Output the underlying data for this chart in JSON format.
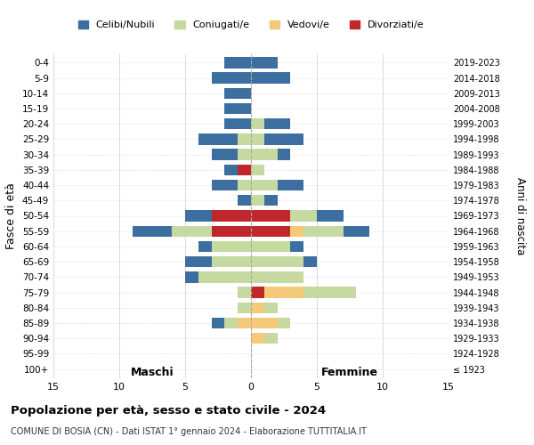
{
  "age_groups": [
    "0-4",
    "5-9",
    "10-14",
    "15-19",
    "20-24",
    "25-29",
    "30-34",
    "35-39",
    "40-44",
    "45-49",
    "50-54",
    "55-59",
    "60-64",
    "65-69",
    "70-74",
    "75-79",
    "80-84",
    "85-89",
    "90-94",
    "95-99",
    "100+"
  ],
  "birth_years": [
    "2019-2023",
    "2014-2018",
    "2009-2013",
    "2004-2008",
    "1999-2003",
    "1994-1998",
    "1989-1993",
    "1984-1988",
    "1979-1983",
    "1974-1978",
    "1969-1973",
    "1964-1968",
    "1959-1963",
    "1954-1958",
    "1949-1953",
    "1944-1948",
    "1939-1943",
    "1934-1938",
    "1929-1933",
    "1924-1928",
    "≤ 1923"
  ],
  "colors": {
    "celibe": "#3C6FA0",
    "coniugato": "#C5D9A0",
    "vedovo": "#F5C97A",
    "divorziato": "#C0272D"
  },
  "maschi": {
    "celibe": [
      2,
      3,
      2,
      2,
      2,
      3,
      2,
      1,
      2,
      1,
      2,
      3,
      1,
      2,
      1,
      0,
      0,
      1,
      0,
      0,
      0
    ],
    "coniugato": [
      0,
      0,
      0,
      0,
      0,
      1,
      1,
      0,
      1,
      0,
      0,
      3,
      3,
      3,
      4,
      1,
      1,
      1,
      0,
      0,
      0
    ],
    "vedovo": [
      0,
      0,
      0,
      0,
      0,
      0,
      0,
      0,
      0,
      0,
      0,
      0,
      0,
      0,
      0,
      0,
      0,
      1,
      0,
      0,
      0
    ],
    "divorziato": [
      0,
      0,
      0,
      0,
      0,
      0,
      0,
      1,
      0,
      0,
      3,
      3,
      0,
      0,
      0,
      0,
      0,
      0,
      0,
      0,
      0
    ]
  },
  "femmine": {
    "nubile": [
      2,
      3,
      0,
      0,
      2,
      3,
      1,
      0,
      2,
      1,
      2,
      2,
      1,
      1,
      0,
      0,
      0,
      0,
      0,
      0,
      0
    ],
    "coniugata": [
      0,
      0,
      0,
      0,
      1,
      1,
      2,
      1,
      2,
      1,
      2,
      3,
      3,
      4,
      4,
      4,
      1,
      1,
      1,
      0,
      0
    ],
    "vedova": [
      0,
      0,
      0,
      0,
      0,
      0,
      0,
      0,
      0,
      0,
      0,
      1,
      0,
      0,
      0,
      3,
      1,
      2,
      1,
      0,
      0
    ],
    "divorziata": [
      0,
      0,
      0,
      0,
      0,
      0,
      0,
      0,
      0,
      0,
      3,
      3,
      0,
      0,
      0,
      1,
      0,
      0,
      0,
      0,
      0
    ]
  },
  "xlim": 15,
  "title_main": "Popolazione per età, sesso e stato civile - 2024",
  "title_sub": "COMUNE DI BOSIA (CN) - Dati ISTAT 1° gennaio 2024 - Elaborazione TUTTITALIA.IT",
  "ylabel_left": "Fasce di età",
  "ylabel_right": "Anni di nascita",
  "xlabel_maschi": "Maschi",
  "xlabel_femmine": "Femmine",
  "legend_labels": [
    "Celibi/Nubili",
    "Coniugati/e",
    "Vedovi/e",
    "Divorziati/e"
  ],
  "legend_colors": [
    "#3C6FA0",
    "#C5D9A0",
    "#F5C97A",
    "#C0272D"
  ]
}
